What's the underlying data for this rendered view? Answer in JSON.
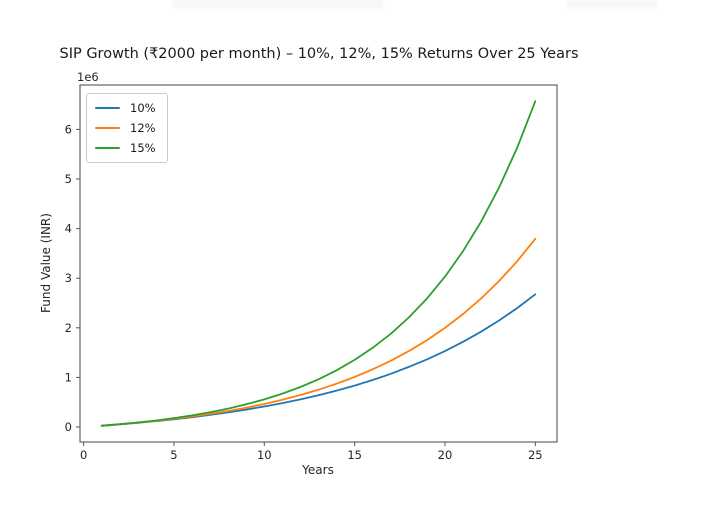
{
  "page": {
    "background": "#ffffff",
    "header_artifacts": {
      "left_smudge": "blurred-toolbar-remnant",
      "right_smudge": "blurred-toolbar-remnant"
    }
  },
  "chart_data": {
    "type": "line",
    "title": "SIP Growth (₹2000 per month) – 10%, 12%, 15% Returns Over 25 Years",
    "xlabel": "Years",
    "ylabel": "Fund Value (INR)",
    "y_offset_text": "1e6",
    "grid": false,
    "legend_position": "upper-left",
    "xlim": [
      -0.2,
      26.2
    ],
    "ylim": [
      -302000,
      6895000
    ],
    "xticks": [
      0,
      5,
      10,
      15,
      20,
      25
    ],
    "yticks": [
      0,
      1,
      2,
      3,
      4,
      5,
      6
    ],
    "ytick_scale": 1000000,
    "axis_color": "#555555",
    "text_color": "#262626",
    "x": [
      1,
      2,
      3,
      4,
      5,
      6,
      7,
      8,
      9,
      10,
      11,
      12,
      13,
      14,
      15,
      16,
      17,
      18,
      19,
      20,
      21,
      22,
      23,
      24,
      25
    ],
    "series": [
      {
        "name": "10%",
        "color": "#1f77b4",
        "values": [
          25341,
          53335,
          84260,
          118424,
          156165,
          197858,
          243917,
          294799,
          351009,
          413104,
          481701,
          557482,
          641199,
          733682,
          835849,
          948713,
          1073397,
          1211136,
          1363297,
          1531394,
          1717093,
          1922237,
          2148860,
          2399216,
          2675784
        ]
      },
      {
        "name": "12%",
        "color": "#ff7f0e",
        "values": [
          25619,
          54486,
          87015,
          123670,
          164973,
          211514,
          263958,
          323053,
          389643,
          464678,
          549230,
          644505,
          751866,
          872843,
          1009152,
          1162756,
          1335843,
          1530885,
          1750660,
          1998306,
          2277355,
          2591792,
          2946115,
          3345373,
          3795270
        ]
      },
      {
        "name": "15%",
        "color": "#2ca02c",
        "values": [
          26042,
          56271,
          91359,
          132088,
          179363,
          234239,
          297937,
          371874,
          457697,
          557314,
          672945,
          807163,
          962957,
          1143797,
          1353710,
          1597370,
          1880202,
          2208498,
          2589574,
          3031903,
          3545343,
          4141323,
          4833109,
          5636102,
          6568187
        ]
      }
    ]
  }
}
